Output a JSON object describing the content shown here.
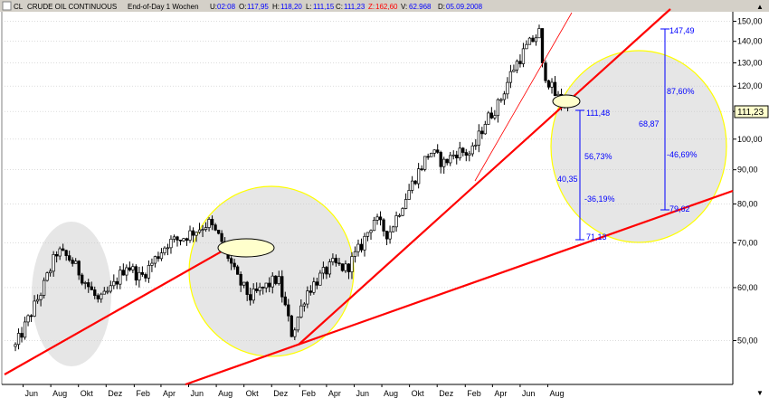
{
  "header": {
    "symbol": "CL",
    "name": "CRUDE OIL CONTINUOUS",
    "period": "End-of-Day 1 Wochen",
    "u_label": "U:",
    "u_value": "02:08",
    "o_label": "O:",
    "o_value": "117,95",
    "h_label": "H:",
    "h_value": "118,20",
    "l_label": "L:",
    "l_value": "111,15",
    "c_label": "C:",
    "c_value": "111,23",
    "z_label": "Z:",
    "z_value": "162,60",
    "v_label": "V:",
    "v_value": "62.968",
    "d_label": "D:",
    "d_value": "05.09.2008",
    "arrow_up": "▲",
    "arrow_down": "▼"
  },
  "colors": {
    "accent": "#0000ff",
    "trendline": "#ff0000",
    "circle_fill": "#e6e6e6",
    "circle_stroke": "#ffff00",
    "candle": "#000000"
  },
  "chart_data": {
    "type": "candlestick",
    "y_scale": "log",
    "ylim": [
      43,
      155
    ],
    "y_ticks": [
      "150,00",
      "140,00",
      "130,00",
      "120,00",
      "110,00",
      "100,00",
      "90,00",
      "80,00",
      "70,00",
      "60,00",
      "50,00"
    ],
    "x_ticks": [
      "Jun",
      "Aug",
      "Okt",
      "Dez",
      "Feb",
      "Apr",
      "Jun",
      "Aug",
      "Okt",
      "Dez",
      "Feb",
      "Apr",
      "Jun",
      "Aug",
      "Okt",
      "Dez",
      "Feb",
      "Apr",
      "Jun",
      "Aug"
    ],
    "last_price_label": "111,23",
    "price_path": [
      {
        "date": "2005-05",
        "price": 49
      },
      {
        "date": "2005-07",
        "price": 60
      },
      {
        "date": "2005-08",
        "price": 68
      },
      {
        "date": "2005-09",
        "price": 66
      },
      {
        "date": "2005-11",
        "price": 57
      },
      {
        "date": "2005-12",
        "price": 60
      },
      {
        "date": "2006-01",
        "price": 65
      },
      {
        "date": "2006-02",
        "price": 62
      },
      {
        "date": "2006-04",
        "price": 70
      },
      {
        "date": "2006-05",
        "price": 71
      },
      {
        "date": "2006-07",
        "price": 75
      },
      {
        "date": "2006-08",
        "price": 70
      },
      {
        "date": "2006-09",
        "price": 62
      },
      {
        "date": "2006-10",
        "price": 58
      },
      {
        "date": "2006-11",
        "price": 60
      },
      {
        "date": "2006-12",
        "price": 62
      },
      {
        "date": "2007-01",
        "price": 51
      },
      {
        "date": "2007-02",
        "price": 59
      },
      {
        "date": "2007-03",
        "price": 62
      },
      {
        "date": "2007-04",
        "price": 65
      },
      {
        "date": "2007-05",
        "price": 64
      },
      {
        "date": "2007-06",
        "price": 69
      },
      {
        "date": "2007-07",
        "price": 76
      },
      {
        "date": "2007-08",
        "price": 72
      },
      {
        "date": "2007-09",
        "price": 80
      },
      {
        "date": "2007-10",
        "price": 88
      },
      {
        "date": "2007-11",
        "price": 96
      },
      {
        "date": "2007-12",
        "price": 92
      },
      {
        "date": "2008-01",
        "price": 96
      },
      {
        "date": "2008-02",
        "price": 95
      },
      {
        "date": "2008-03",
        "price": 106
      },
      {
        "date": "2008-04",
        "price": 113
      },
      {
        "date": "2008-05",
        "price": 127
      },
      {
        "date": "2008-06",
        "price": 137
      },
      {
        "date": "2008-07",
        "price": 145
      },
      {
        "date": "2008-07-20",
        "price": 128
      },
      {
        "date": "2008-08",
        "price": 117
      },
      {
        "date": "2008-09",
        "price": 111
      }
    ],
    "annotations": [
      {
        "text": "147,49",
        "value": 147.49
      },
      {
        "text": "111,48",
        "value": 111.48
      },
      {
        "text": "79,62",
        "value": 79.62
      },
      {
        "text": "71,13",
        "value": 71.13
      },
      {
        "text": "87,60%"
      },
      {
        "text": "68,87"
      },
      {
        "text": "-46,69%"
      },
      {
        "text": "56,73%"
      },
      {
        "text": "40,35"
      },
      {
        "text": "-36,19%"
      }
    ]
  }
}
